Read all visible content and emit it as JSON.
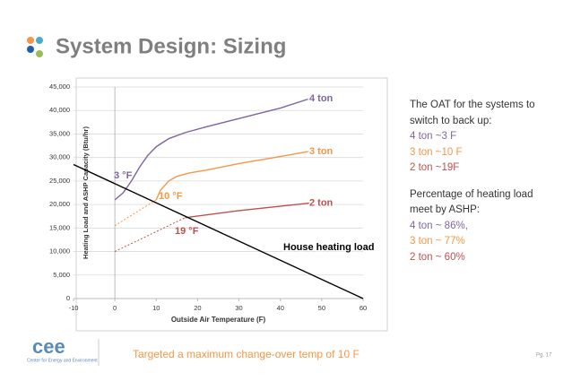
{
  "slide": {
    "title": "System Design: Sizing",
    "logo": "cee",
    "logo_caption": "Center for Energy and Environment",
    "notes": [
      {
        "lines": [
          {
            "text": "The OAT for the systems to switch to back up:",
            "color": "#333333"
          },
          {
            "text": "4 ton ~3 F",
            "color": "#8064a2"
          },
          {
            "text": "3 ton ~10 F",
            "color": "#f79646"
          },
          {
            "text": "2 ton ~19F",
            "color": "#c0504d"
          }
        ]
      },
      {
        "lines": [
          {
            "text": "Percentage of heating load meet by ASHP:",
            "color": "#333333"
          },
          {
            "text": "4 ton ~ 86%,",
            "color": "#8064a2"
          },
          {
            "text": "3 ton ~ 77%",
            "color": "#f79646"
          },
          {
            "text": "2 ton ~ 60%",
            "color": "#c0504d"
          }
        ]
      }
    ],
    "footer": "Targeted a maximum change-over temp of 10 F",
    "page": "Pg. 17"
  },
  "chart_data": {
    "type": "line",
    "x_label": "Outside Air Temperature (F)",
    "y_label": "Heating Load and ASHP Capacity (Btu/hr)",
    "xlim": [
      -10,
      60
    ],
    "xticks": [
      -10,
      0,
      10,
      20,
      30,
      40,
      50,
      60
    ],
    "ylim": [
      0,
      45000
    ],
    "yticks": [
      0,
      {
        "value": 5000,
        "label": "5,000"
      },
      {
        "value": 10000,
        "label": "10,000"
      },
      {
        "value": 15000,
        "label": "15,000"
      },
      {
        "value": 20000,
        "label": "20,000"
      },
      {
        "value": 25000,
        "label": "25,000"
      },
      {
        "value": 30000,
        "label": "30,000"
      },
      {
        "value": 35000,
        "label": "35,000"
      },
      {
        "value": 40000,
        "label": "40,000"
      },
      {
        "value": 45000,
        "label": "45,000"
      }
    ],
    "grid": true,
    "series": [
      {
        "name": "4 ton",
        "color": "#8064a2",
        "x": [
          0,
          2,
          4,
          6,
          8,
          10,
          13,
          17,
          22,
          30,
          40,
          47
        ],
        "values": [
          21000,
          22500,
          25000,
          28000,
          30500,
          32300,
          34000,
          35300,
          36500,
          38300,
          40500,
          42500
        ]
      },
      {
        "name": "3 ton",
        "color": "#f79646",
        "x": [
          10,
          11,
          13,
          15,
          18,
          22,
          30,
          40,
          47
        ],
        "values": [
          21000,
          23000,
          25000,
          26000,
          26700,
          27300,
          28700,
          30200,
          31300
        ]
      },
      {
        "name": "2 ton",
        "color": "#c0504d",
        "x": [
          17,
          30,
          47
        ],
        "values": [
          17200,
          18700,
          20300
        ]
      },
      {
        "name": "House heating load",
        "color": "#000000",
        "x": [
          -10,
          60
        ],
        "values": [
          28500,
          0
        ]
      },
      {
        "color": "#f79646",
        "dashed": true,
        "x": [
          0,
          10
        ],
        "values": [
          15500,
          21000
        ]
      },
      {
        "color": "#c0504d",
        "dashed": true,
        "x": [
          0,
          17
        ],
        "values": [
          10000,
          17200
        ]
      }
    ],
    "annotations": [
      {
        "text": "3 °F",
        "color": "#8064a2"
      },
      {
        "text": "10 °F",
        "color": "#f79646"
      },
      {
        "text": "19 °F",
        "color": "#c0504d"
      }
    ]
  }
}
